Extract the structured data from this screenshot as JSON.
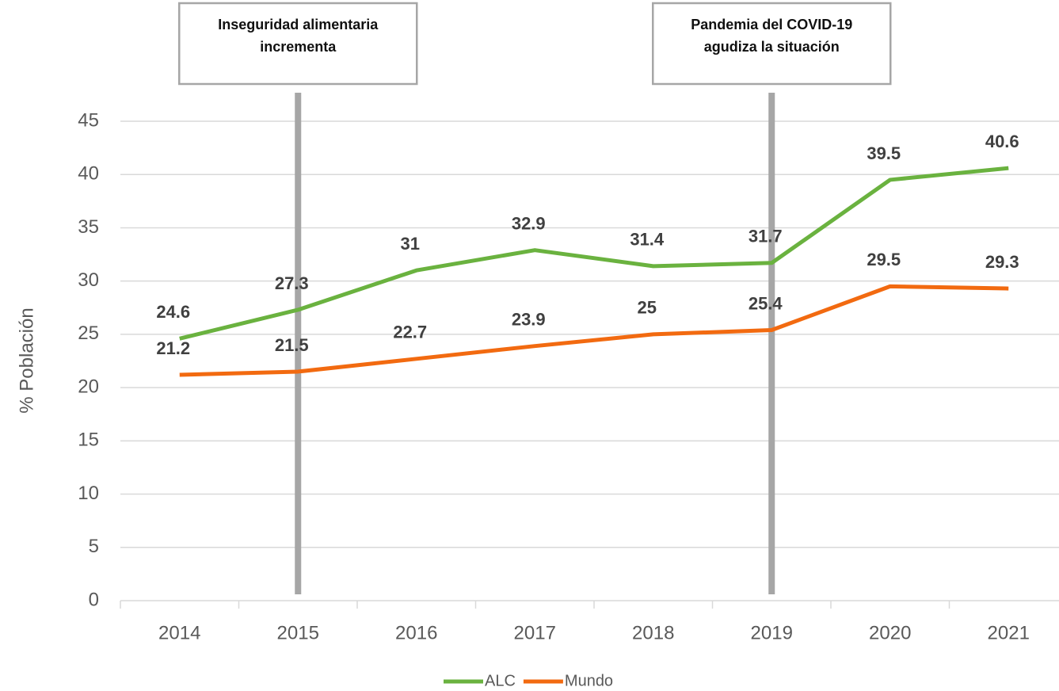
{
  "chart_data": {
    "type": "line",
    "categories": [
      "2014",
      "2015",
      "2016",
      "2017",
      "2018",
      "2019",
      "2020",
      "2021"
    ],
    "series": [
      {
        "name": "ALC",
        "color": "#6ab23f",
        "values": [
          24.6,
          27.3,
          31,
          32.9,
          31.4,
          31.7,
          39.5,
          40.6
        ]
      },
      {
        "name": "Mundo",
        "color": "#f26a10",
        "values": [
          21.2,
          21.5,
          22.7,
          23.9,
          25,
          25.4,
          29.5,
          29.3
        ]
      }
    ],
    "ylabel": "% Población",
    "ylim": [
      0,
      45
    ],
    "yticks": [
      0,
      5,
      10,
      15,
      20,
      25,
      30,
      35,
      40,
      45
    ],
    "grid": true,
    "legend": "bottom",
    "annotations": [
      {
        "lines": [
          "Inseguridad alimentaria",
          "incrementa"
        ],
        "x": "2015"
      },
      {
        "lines": [
          "Pandemia del COVID-19",
          "agudiza la situación"
        ],
        "x": "2019"
      }
    ]
  }
}
